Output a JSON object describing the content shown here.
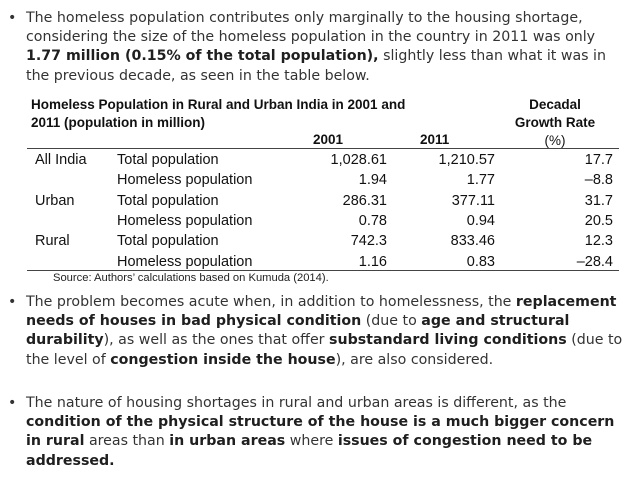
{
  "bullets": [
    {
      "marker": "•",
      "segments": [
        {
          "text": "The homeless population contributes only marginally to the housing shortage, considering the size of the homeless population in the country in 2011 was only ",
          "bold": false
        },
        {
          "text": "1.77 million (0.15% of the total population),",
          "bold": true
        },
        {
          "text": " slightly less than what it was in the previous decade, as seen in the table below.",
          "bold": false
        }
      ]
    },
    {
      "marker": "•",
      "segments": [
        {
          "text": "The problem becomes acute when, in addition to homelessness, the ",
          "bold": false
        },
        {
          "text": "replacement needs of houses in bad physical condition",
          "bold": true
        },
        {
          "text": " (due to ",
          "bold": false
        },
        {
          "text": "age and structural durability",
          "bold": true
        },
        {
          "text": "), as well as the ones that offer ",
          "bold": false
        },
        {
          "text": "substandard living conditions",
          "bold": true
        },
        {
          "text": " (due to the level of ",
          "bold": false
        },
        {
          "text": "congestion inside the house",
          "bold": true
        },
        {
          "text": "), are also considered.",
          "bold": false
        }
      ]
    },
    {
      "marker": "•",
      "segments": [
        {
          "text": "The nature of housing shortages in rural and urban areas is different, as the ",
          "bold": false
        },
        {
          "text": "condition of the physical structure of the house is a much bigger concern in rural",
          "bold": true
        },
        {
          "text": " areas than ",
          "bold": false
        },
        {
          "text": "in urban areas",
          "bold": true
        },
        {
          "text": " where ",
          "bold": false
        },
        {
          "text": "issues of congestion need to be addressed.",
          "bold": true
        }
      ]
    }
  ],
  "table": {
    "title_line1": "Homeless Population in Rural and Urban India in 2001 and",
    "title_line2": "2011 (population in million)",
    "col_2001": "2001",
    "col_2011": "2011",
    "decadal_line1": "Decadal",
    "decadal_line2": "Growth Rate",
    "decadal_unit": "(%)",
    "rows": [
      {
        "region": "All India",
        "label": "Total population",
        "v2001": "1,028.61",
        "v2011": "1,210.57",
        "rate": "17.7"
      },
      {
        "region": "",
        "label": "Homeless population",
        "v2001": "1.94",
        "v2011": "1.77",
        "rate": "–8.8"
      },
      {
        "region": "Urban",
        "label": "Total population",
        "v2001": "286.31",
        "v2011": "377.11",
        "rate": "31.7"
      },
      {
        "region": "",
        "label": "Homeless population",
        "v2001": "0.78",
        "v2011": "0.94",
        "rate": "20.5"
      },
      {
        "region": "Rural",
        "label": "Total population",
        "v2001": "742.3",
        "v2011": "833.46",
        "rate": "12.3"
      },
      {
        "region": "",
        "label": "Homeless population",
        "v2001": "1.16",
        "v2011": "0.83",
        "rate": "–28.4"
      }
    ],
    "source": "Source: Authors’ calculations based on Kumuda (2014)."
  }
}
